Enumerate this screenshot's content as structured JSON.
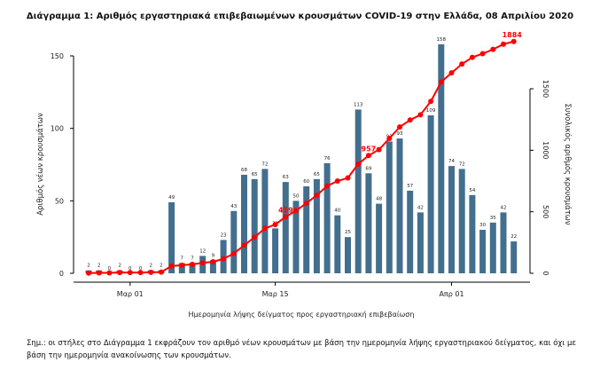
{
  "chart_data": {
    "type": "bar+line",
    "title": "Διάγραμμα 1: Αριθμός εργαστηριακά επιβεβαιωμένων κρουσμάτων COVID-19 στην Ελλάδα, 08 Απριλίου 2020",
    "xlabel": "Ημερομηνία λήψης δείγματος προς εργαστηριακή επιβεβαίωση",
    "ylabel": "Αριθμός νέων κρουσμάτων",
    "y2label": "Συνολικός αριθμός κρουσμάτων",
    "x": [
      "2020-02-26",
      "2020-02-27",
      "2020-02-28",
      "2020-02-29",
      "2020-03-01",
      "2020-03-02",
      "2020-03-03",
      "2020-03-04",
      "2020-03-05",
      "2020-03-06",
      "2020-03-07",
      "2020-03-08",
      "2020-03-09",
      "2020-03-10",
      "2020-03-11",
      "2020-03-12",
      "2020-03-13",
      "2020-03-14",
      "2020-03-15",
      "2020-03-16",
      "2020-03-17",
      "2020-03-18",
      "2020-03-19",
      "2020-03-20",
      "2020-03-21",
      "2020-03-22",
      "2020-03-23",
      "2020-03-24",
      "2020-03-25",
      "2020-03-26",
      "2020-03-27",
      "2020-03-28",
      "2020-03-29",
      "2020-03-30",
      "2020-03-31",
      "2020-04-01",
      "2020-04-02",
      "2020-04-03",
      "2020-04-04",
      "2020-04-05",
      "2020-04-06",
      "2020-04-07"
    ],
    "xticks": [
      {
        "label": "Μαρ 01",
        "index": 4
      },
      {
        "label": "Μαρ 15",
        "index": 18
      },
      {
        "label": "Απρ 01",
        "index": 35
      }
    ],
    "series": [
      {
        "type": "bar",
        "axis": "left",
        "color": "#436f8e",
        "values": [
          2,
          2,
          0,
          2,
          0,
          0,
          2,
          2,
          49,
          7,
          7,
          12,
          9,
          23,
          43,
          68,
          65,
          72,
          31,
          63,
          50,
          60,
          65,
          76,
          40,
          25,
          113,
          69,
          48,
          91,
          93,
          57,
          42,
          109,
          158,
          74,
          72,
          54,
          30,
          35,
          42,
          22
        ]
      },
      {
        "type": "line",
        "axis": "right",
        "color": "#ff0000",
        "values": [
          2,
          4,
          4,
          6,
          6,
          6,
          8,
          10,
          59,
          66,
          73,
          85,
          94,
          117,
          160,
          228,
          293,
          365,
          396,
          459,
          509,
          569,
          634,
          710,
          750,
          775,
          888,
          957,
          1005,
          1096,
          1189,
          1246,
          1288,
          1397,
          1555,
          1629,
          1701,
          1755,
          1785,
          1820,
          1862,
          1884
        ],
        "labeled_points": [
          {
            "index": 19,
            "label": "459"
          },
          {
            "index": 27,
            "label": "957"
          },
          {
            "index": 41,
            "label": "1884"
          }
        ]
      }
    ],
    "ylim": [
      0,
      165
    ],
    "yticks": [
      "0",
      "50",
      "100",
      "150"
    ],
    "y2lim": [
      0,
      1650
    ],
    "y2ticks": [
      "0",
      "500",
      "1000",
      "1500"
    ],
    "grid": false
  },
  "note": "Σημ.: οι στήλες στο Διάγραμμα 1 εκφράζουν τον αριθμό νέων κρουσμάτων με βάση την ημερομηνία λήψης εργαστηριακού δείγματος, και όχι με βάση την ημερομηνία ανακοίνωσης των κρουσμάτων."
}
